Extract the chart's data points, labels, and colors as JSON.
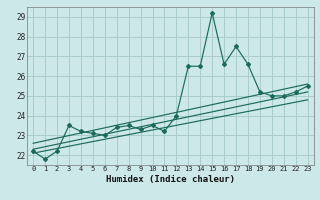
{
  "title": "",
  "xlabel": "Humidex (Indice chaleur)",
  "bg_color": "#cce8e8",
  "grid_color": "#aacccc",
  "line_color": "#1a6b5a",
  "xlim": [
    -0.5,
    23.5
  ],
  "ylim": [
    21.5,
    29.5
  ],
  "xticks": [
    0,
    1,
    2,
    3,
    4,
    5,
    6,
    7,
    8,
    9,
    10,
    11,
    12,
    13,
    14,
    15,
    16,
    17,
    18,
    19,
    20,
    21,
    22,
    23
  ],
  "yticks": [
    22,
    23,
    24,
    25,
    26,
    27,
    28,
    29
  ],
  "main_x": [
    0,
    1,
    2,
    3,
    4,
    5,
    6,
    7,
    8,
    9,
    10,
    11,
    12,
    13,
    14,
    15,
    16,
    17,
    18,
    19,
    20,
    21,
    22,
    23
  ],
  "main_y": [
    22.2,
    21.8,
    22.2,
    23.5,
    23.2,
    23.1,
    23.0,
    23.4,
    23.5,
    23.3,
    23.5,
    23.2,
    24.0,
    26.5,
    26.5,
    29.2,
    26.6,
    27.5,
    26.6,
    25.2,
    25.0,
    25.0,
    25.2,
    25.5
  ],
  "line1_x": [
    0,
    23
  ],
  "line1_y": [
    22.1,
    24.8
  ],
  "line2_x": [
    0,
    23
  ],
  "line2_y": [
    22.3,
    25.2
  ],
  "line3_x": [
    0,
    23
  ],
  "line3_y": [
    22.6,
    25.6
  ]
}
